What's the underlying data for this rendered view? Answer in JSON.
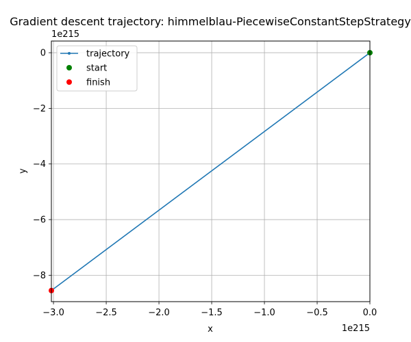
{
  "chart_data": {
    "type": "line",
    "title": "Gradient descent trajectory: himmelblau-PiecewiseConstantStepStrategy",
    "xlabel": "x",
    "ylabel": "y",
    "x_offset_label": "1e215",
    "y_offset_label": "1e215",
    "xlim": [
      -3.02,
      0.0
    ],
    "ylim": [
      -8.95,
      0.42
    ],
    "x_ticks": [
      {
        "value": -3.0,
        "label": "−3.0"
      },
      {
        "value": -2.5,
        "label": "−2.5"
      },
      {
        "value": -2.0,
        "label": "−2.0"
      },
      {
        "value": -1.5,
        "label": "−1.5"
      },
      {
        "value": -1.0,
        "label": "−1.0"
      },
      {
        "value": -0.5,
        "label": "−0.5"
      },
      {
        "value": 0.0,
        "label": "0.0"
      }
    ],
    "y_ticks": [
      {
        "value": 0,
        "label": "0"
      },
      {
        "value": -2,
        "label": "−2"
      },
      {
        "value": -4,
        "label": "−4"
      },
      {
        "value": -6,
        "label": "−6"
      },
      {
        "value": -8,
        "label": "−8"
      }
    ],
    "grid": true,
    "legend_position": "upper-left",
    "series": [
      {
        "name": "trajectory",
        "kind": "line",
        "marker": "point",
        "color": "#1f77b4",
        "x": [
          0.0,
          -3.02
        ],
        "y": [
          0.0,
          -8.55
        ]
      },
      {
        "name": "start",
        "kind": "scatter",
        "color": "#008000",
        "x": [
          0.0
        ],
        "y": [
          0.0
        ]
      },
      {
        "name": "finish",
        "kind": "scatter",
        "color": "#ff0000",
        "x": [
          -3.02
        ],
        "y": [
          -8.55
        ]
      }
    ]
  }
}
